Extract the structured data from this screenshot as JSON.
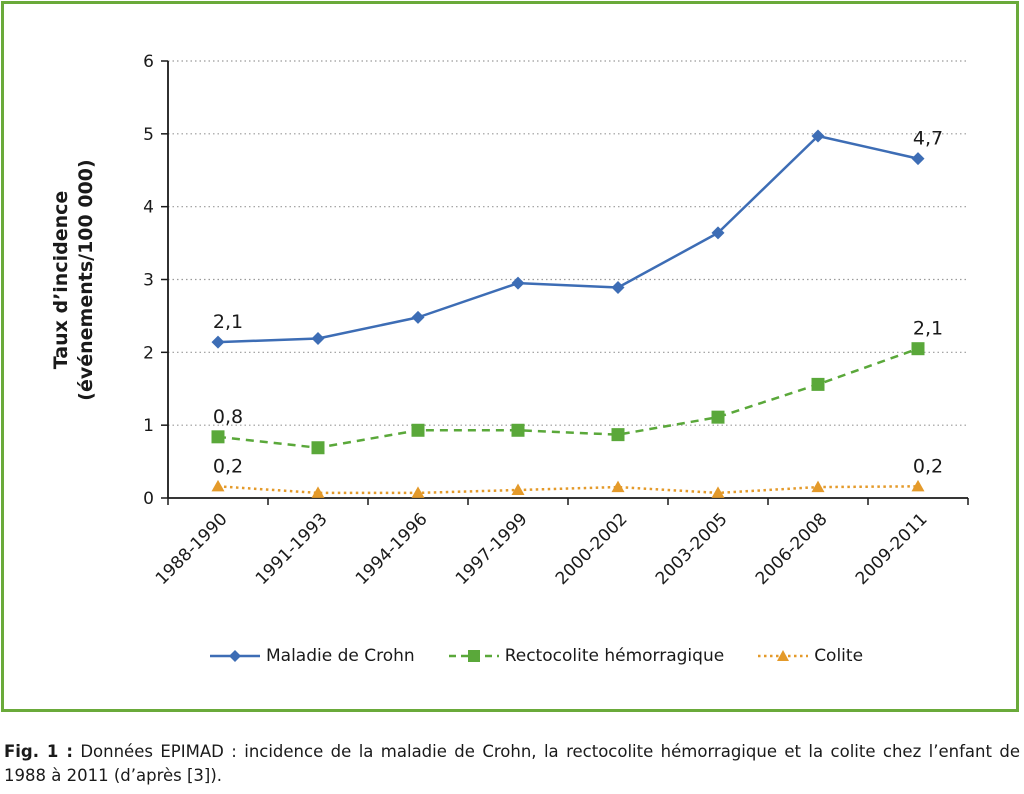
{
  "chart_data": {
    "type": "line",
    "ylabel_line1": "Taux d’incidence",
    "ylabel_line2": "(événements/100 000)",
    "xlabel": "",
    "ylim": [
      0,
      6
    ],
    "yticks": [
      "0",
      "1",
      "2",
      "3",
      "4",
      "5",
      "6"
    ],
    "grid": "horizontal dotted",
    "categories": [
      "1988-1990",
      "1991-1993",
      "1994-1996",
      "1997-1999",
      "2000-2002",
      "2003-2005",
      "2006-2008",
      "2009-2011"
    ],
    "series": [
      {
        "name": "Maladie de Crohn",
        "color": "#3d6db5",
        "marker": "diamond",
        "line": "solid",
        "values": [
          2.14,
          2.19,
          2.48,
          2.95,
          2.89,
          3.64,
          4.97,
          4.66
        ],
        "labels": [
          {
            "index": 0,
            "text": "2,1"
          },
          {
            "index": 7,
            "text": "4,7"
          }
        ]
      },
      {
        "name": "Rectocolite hémorragique",
        "color": "#5aa83a",
        "marker": "square",
        "line": "dashed",
        "values": [
          0.84,
          0.69,
          0.93,
          0.93,
          0.87,
          1.11,
          1.56,
          2.05
        ],
        "labels": [
          {
            "index": 0,
            "text": "0,8"
          },
          {
            "index": 7,
            "text": "2,1"
          }
        ]
      },
      {
        "name": "Colite",
        "color": "#e49a2a",
        "marker": "triangle",
        "line": "dotted",
        "values": [
          0.16,
          0.07,
          0.07,
          0.11,
          0.15,
          0.07,
          0.15,
          0.16
        ],
        "labels": [
          {
            "index": 0,
            "text": "0,2"
          },
          {
            "index": 7,
            "text": "0,2"
          }
        ]
      }
    ],
    "legend_position": "bottom"
  },
  "caption": {
    "label": "Fig. 1 :",
    "text": " Données EPIMAD : incidence de la maladie de Crohn, la rectocolite hémorragique et la colite chez l’enfant de 1988 à 2011 (d’après [3])."
  }
}
